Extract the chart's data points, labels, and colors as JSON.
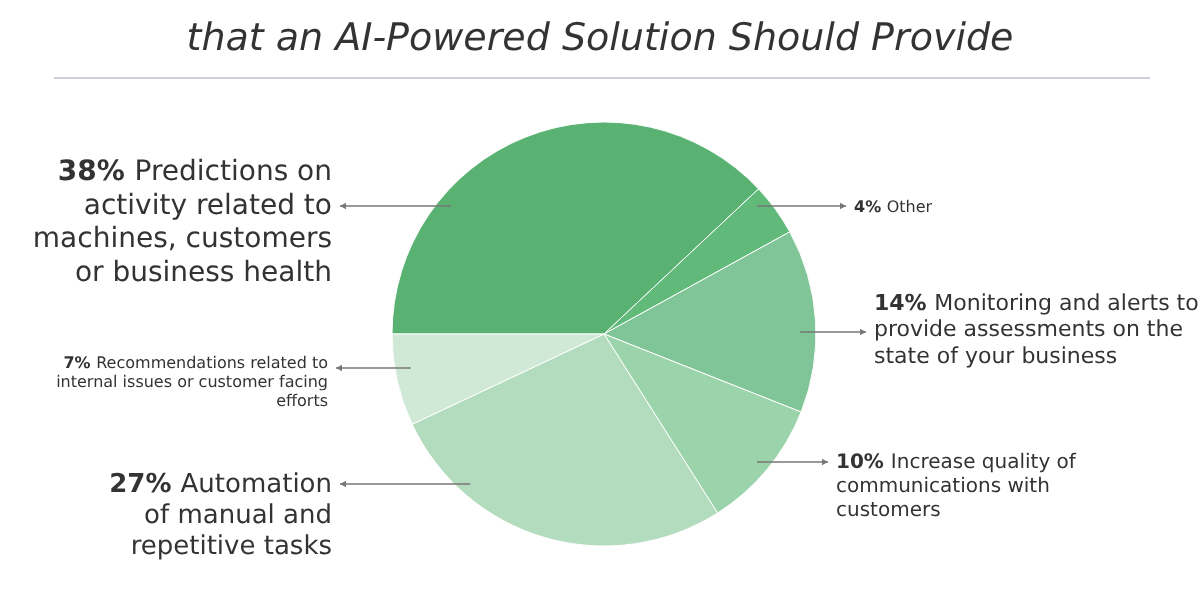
{
  "chart_data": {
    "type": "pie",
    "title": "that an AI-Powered Solution Should Provide",
    "categories": [
      "Predictions on activity related to machines, customers or business health",
      "Other",
      "Monitoring and alerts to provide assessments on the state of your business",
      "Increase quality of communications with customers",
      "Automation of manual and repetitive tasks",
      "Recommendations related to internal issues or customer facing efforts"
    ],
    "values": [
      38,
      4,
      14,
      10,
      27,
      7
    ],
    "value_labels": [
      "38%",
      "4%",
      "14%",
      "10%",
      "27%",
      "7%"
    ],
    "colors": [
      "#5ab272",
      "#62ba7a",
      "#80c597",
      "#9bd3aa",
      "#b2dcbd",
      "#d0e9d6"
    ]
  }
}
